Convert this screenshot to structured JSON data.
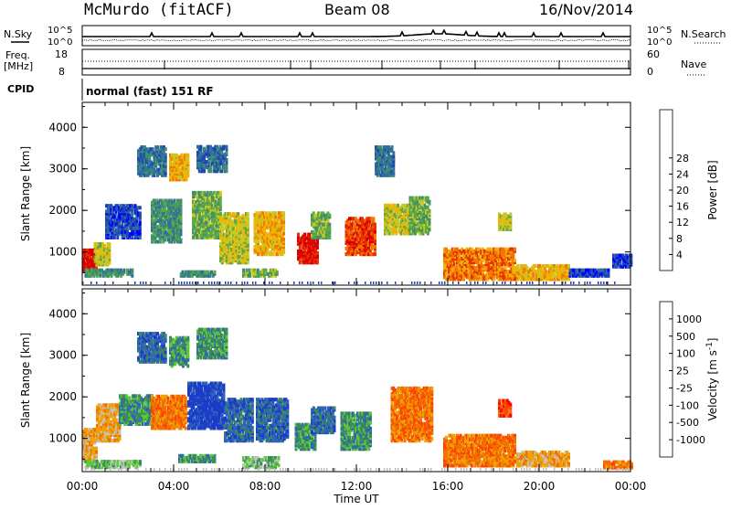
{
  "header": {
    "station": "McMurdo (fitACF)",
    "beam": "Beam 08",
    "date": "16/Nov/2014"
  },
  "strip": {
    "nsky_label": "N.Sky",
    "nsky_scale_top": "10^5",
    "nsky_scale_bottom": "10^0",
    "nsearch_label": "N.Search",
    "nsearch_scale_top": "10^5",
    "nsearch_scale_bottom": "10^0",
    "freq_label": "Freq.",
    "freq_unit": "[MHz]",
    "freq_scale_top": "18",
    "freq_scale_bottom": "8",
    "nave_label": "Nave",
    "nave_scale_top": "60",
    "nave_scale_bottom": "0",
    "cpid_label": "CPID",
    "cpid_value": "normal (fast) 151 RF"
  },
  "chart_data": [
    {
      "type": "heatmap",
      "name": "power",
      "ylabel": "Slant Range [km]",
      "xlabel": "",
      "xlim": [
        0,
        24
      ],
      "ylim": [
        200,
        4600
      ],
      "yticks": [
        "1000",
        "2000",
        "3000",
        "4000"
      ],
      "colorbar": {
        "label": "Power [dB]",
        "ticks": [
          "4",
          "8",
          "12",
          "16",
          "20",
          "24",
          "28"
        ],
        "colors": [
          "#0000ff",
          "#1e44b8",
          "#2f6f9c",
          "#3f8f6a",
          "#5aa84a",
          "#c8c820",
          "#f2b000",
          "#f07800",
          "#e83000",
          "#d80000"
        ]
      },
      "regions": [
        {
          "t0": 0.0,
          "t1": 0.6,
          "r0": 500,
          "r1": 1000,
          "level": 9
        },
        {
          "t0": 0.1,
          "t1": 2.2,
          "r0": 380,
          "r1": 520,
          "level": 3
        },
        {
          "t0": 0.5,
          "t1": 1.2,
          "r0": 650,
          "r1": 1150,
          "level": 5
        },
        {
          "t0": 1.0,
          "t1": 2.5,
          "r0": 1300,
          "r1": 2100,
          "level": 1
        },
        {
          "t0": 2.4,
          "t1": 3.6,
          "r0": 2800,
          "r1": 3500,
          "level": 2
        },
        {
          "t0": 3.0,
          "t1": 4.3,
          "r0": 1200,
          "r1": 2200,
          "level": 3
        },
        {
          "t0": 3.8,
          "t1": 4.6,
          "r0": 2700,
          "r1": 3300,
          "level": 6
        },
        {
          "t0": 4.2,
          "t1": 5.8,
          "r0": 380,
          "r1": 500,
          "level": 3
        },
        {
          "t0": 4.8,
          "t1": 6.0,
          "r0": 1300,
          "r1": 2400,
          "level": 4
        },
        {
          "t0": 5.0,
          "t1": 6.3,
          "r0": 2900,
          "r1": 3500,
          "level": 2
        },
        {
          "t0": 6.0,
          "t1": 7.2,
          "r0": 700,
          "r1": 1900,
          "level": 5
        },
        {
          "t0": 7.0,
          "t1": 8.5,
          "r0": 380,
          "r1": 520,
          "level": 4
        },
        {
          "t0": 7.5,
          "t1": 8.8,
          "r0": 900,
          "r1": 1900,
          "level": 6
        },
        {
          "t0": 9.4,
          "t1": 10.3,
          "r0": 700,
          "r1": 1400,
          "level": 9
        },
        {
          "t0": 10.0,
          "t1": 10.8,
          "r0": 1300,
          "r1": 1900,
          "level": 4
        },
        {
          "t0": 11.5,
          "t1": 12.8,
          "r0": 900,
          "r1": 1800,
          "level": 8
        },
        {
          "t0": 12.8,
          "t1": 13.6,
          "r0": 2800,
          "r1": 3500,
          "level": 2
        },
        {
          "t0": 13.2,
          "t1": 14.3,
          "r0": 1400,
          "r1": 2100,
          "level": 5
        },
        {
          "t0": 14.3,
          "t1": 15.2,
          "r0": 1400,
          "r1": 2300,
          "level": 4
        },
        {
          "t0": 15.8,
          "t1": 18.9,
          "r0": 300,
          "r1": 1050,
          "level": 7
        },
        {
          "t0": 18.2,
          "t1": 18.7,
          "r0": 1500,
          "r1": 1900,
          "level": 5
        },
        {
          "t0": 19.0,
          "t1": 21.3,
          "r0": 300,
          "r1": 650,
          "level": 6
        },
        {
          "t0": 21.3,
          "t1": 23.0,
          "r0": 380,
          "r1": 520,
          "level": 1
        },
        {
          "t0": 23.2,
          "t1": 24.0,
          "r0": 600,
          "r1": 900,
          "level": 1
        }
      ]
    },
    {
      "type": "heatmap",
      "name": "velocity",
      "ylabel": "Slant Range [km]",
      "xlabel": "Time UT",
      "xlim": [
        0,
        24
      ],
      "ylim": [
        200,
        4600
      ],
      "xticks": [
        "00:00",
        "04:00",
        "08:00",
        "12:00",
        "16:00",
        "20:00",
        "00:00"
      ],
      "yticks": [
        "1000",
        "2000",
        "3000",
        "4000"
      ],
      "colorbar": {
        "label": "Velocity [m s",
        "label_sup": "-1",
        "label_end": "]",
        "ticks": [
          "1000",
          "500",
          "100",
          "25",
          "-25",
          "-100",
          "-500",
          "-1000"
        ],
        "colors": [
          "#1a3cc8",
          "#2d64b4",
          "#3d8a5c",
          "#5ac83a",
          "#c0c0c0",
          "#f0a000",
          "#f07000",
          "#ff4000",
          "#ff0000"
        ]
      },
      "regions": [
        {
          "t0": 0.0,
          "t1": 0.6,
          "r0": 400,
          "r1": 1200,
          "level": 5
        },
        {
          "t0": 0.1,
          "t1": 2.5,
          "r0": 260,
          "r1": 420,
          "level": 3
        },
        {
          "t0": 0.6,
          "t1": 1.6,
          "r0": 900,
          "r1": 1800,
          "level": 5
        },
        {
          "t0": 1.6,
          "t1": 3.0,
          "r0": 1300,
          "r1": 2000,
          "level": 2
        },
        {
          "t0": 2.4,
          "t1": 3.6,
          "r0": 2800,
          "r1": 3500,
          "level": 1
        },
        {
          "t0": 3.0,
          "t1": 4.5,
          "r0": 1200,
          "r1": 2000,
          "level": 6
        },
        {
          "t0": 3.8,
          "t1": 4.6,
          "r0": 2700,
          "r1": 3400,
          "level": 2
        },
        {
          "t0": 4.2,
          "t1": 5.8,
          "r0": 400,
          "r1": 580,
          "level": 2
        },
        {
          "t0": 4.6,
          "t1": 6.2,
          "r0": 1200,
          "r1": 2300,
          "level": 0
        },
        {
          "t0": 5.0,
          "t1": 6.3,
          "r0": 2900,
          "r1": 3600,
          "level": 2
        },
        {
          "t0": 6.2,
          "t1": 7.4,
          "r0": 900,
          "r1": 1900,
          "level": 1
        },
        {
          "t0": 7.0,
          "t1": 8.6,
          "r0": 260,
          "r1": 500,
          "level": 3
        },
        {
          "t0": 7.6,
          "t1": 9.0,
          "r0": 900,
          "r1": 1900,
          "level": 1
        },
        {
          "t0": 9.3,
          "t1": 10.2,
          "r0": 700,
          "r1": 1300,
          "level": 2
        },
        {
          "t0": 10.0,
          "t1": 11.0,
          "r0": 1100,
          "r1": 1700,
          "level": 1
        },
        {
          "t0": 11.3,
          "t1": 12.6,
          "r0": 700,
          "r1": 1600,
          "level": 2
        },
        {
          "t0": 13.5,
          "t1": 15.3,
          "r0": 900,
          "r1": 2200,
          "level": 6
        },
        {
          "t0": 15.8,
          "t1": 18.9,
          "r0": 300,
          "r1": 1050,
          "level": 6
        },
        {
          "t0": 18.2,
          "t1": 18.7,
          "r0": 1500,
          "r1": 1900,
          "level": 7
        },
        {
          "t0": 19.0,
          "t1": 21.3,
          "r0": 300,
          "r1": 650,
          "level": 5
        },
        {
          "t0": 22.8,
          "t1": 24.0,
          "r0": 250,
          "r1": 420,
          "level": 6
        }
      ]
    }
  ]
}
